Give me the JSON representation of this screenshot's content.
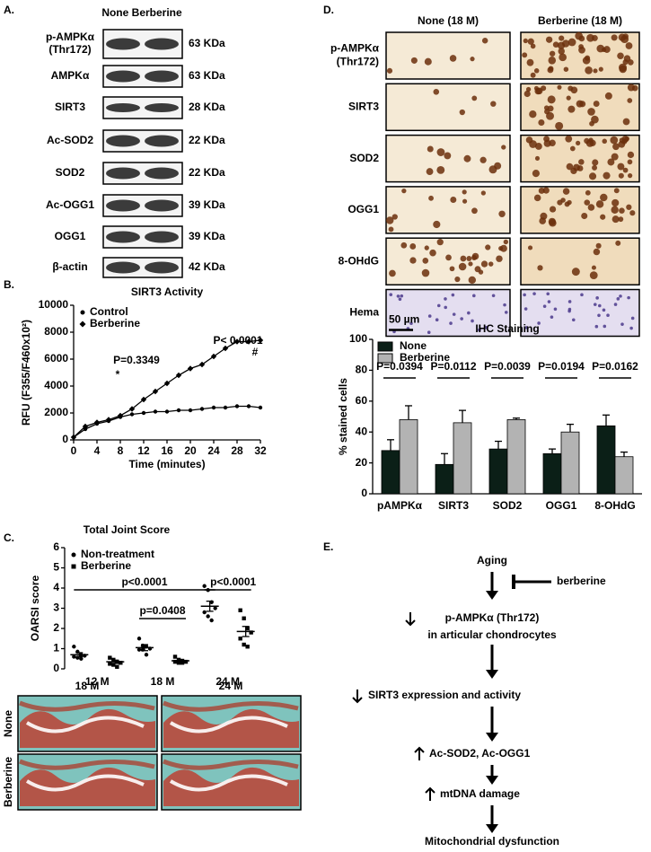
{
  "panels": [
    "A.",
    "B.",
    "C.",
    "D.",
    "E."
  ],
  "blot": {
    "header": "None Berberine",
    "rows": [
      {
        "label": [
          "p-AMPKα",
          "(Thr172)"
        ],
        "size": "63 KDa"
      },
      {
        "label": [
          "AMPKα"
        ],
        "size": "63 KDa"
      },
      {
        "label": [
          "SIRT3"
        ],
        "size": "28 KDa"
      },
      {
        "label": [
          "Ac-SOD2"
        ],
        "size": "22 KDa"
      },
      {
        "label": [
          "SOD2"
        ],
        "size": "22 KDa"
      },
      {
        "label": [
          "Ac-OGG1"
        ],
        "size": "39 KDa"
      },
      {
        "label": [
          "OGG1"
        ],
        "size": "39 KDa"
      },
      {
        "label": [
          "β-actin"
        ],
        "size": "42 KDa"
      }
    ]
  },
  "chart_data": [
    {
      "type": "line",
      "title": "SIRT3 Activity",
      "x_label": "Time (minutes)",
      "y_label": "RFU (F355/F460x10²)",
      "x": [
        0,
        2,
        4,
        6,
        8,
        10,
        12,
        14,
        16,
        18,
        20,
        22,
        24,
        26,
        28,
        30,
        32
      ],
      "xlim": [
        0,
        32
      ],
      "xticks": [
        0,
        4,
        8,
        12,
        16,
        20,
        24,
        28,
        32
      ],
      "ylim": [
        0,
        10000
      ],
      "yticks": [
        0,
        2000,
        4000,
        6000,
        8000,
        10000
      ],
      "legend": "upper left",
      "series": [
        {
          "name": "Control",
          "color": "#000000",
          "marker": "circle",
          "values": [
            200,
            800,
            1200,
            1400,
            1700,
            1900,
            2000,
            2100,
            2100,
            2200,
            2200,
            2300,
            2400,
            2400,
            2500,
            2500,
            2400
          ]
        },
        {
          "name": "Berberine",
          "color": "#000000",
          "marker": "diamond",
          "values": [
            200,
            1000,
            1300,
            1500,
            1800,
            2300,
            3000,
            3600,
            4200,
            4800,
            5300,
            5600,
            6200,
            6800,
            7300,
            7300,
            7400
          ]
        }
      ],
      "annotations": [
        "P=0.3349",
        "*",
        "P< 0.0001",
        "#"
      ]
    },
    {
      "type": "dot",
      "title": "Total Joint Score",
      "y_label": "OARSI score",
      "categories": [
        "12 M",
        "18 M",
        "24 M"
      ],
      "ylim": [
        0,
        6
      ],
      "yticks": [
        0,
        1,
        2,
        3,
        4,
        5,
        6
      ],
      "legend": "upper left",
      "series": [
        {
          "name": "Non-treatment",
          "color": "#000000",
          "marker": "circle",
          "values": [
            0.7,
            1.05,
            3.1
          ],
          "errors": [
            0.1,
            0.15,
            0.25
          ],
          "points": [
            [
              1.1,
              0.85,
              0.7,
              0.65,
              0.6,
              0.55,
              0.5
            ],
            [
              1.5,
              1.15,
              1.1,
              1.0,
              0.95,
              0.95,
              0.7
            ],
            [
              4.1,
              3.9,
              3.3,
              3.0,
              2.8,
              2.6,
              2.4
            ]
          ]
        },
        {
          "name": "Berberine",
          "color": "#000000",
          "marker": "square",
          "values": [
            0.35,
            0.4,
            1.85
          ],
          "errors": [
            0.08,
            0.05,
            0.25
          ],
          "points": [
            [
              0.55,
              0.45,
              0.35,
              0.3,
              0.25,
              0.2,
              0.1
            ],
            [
              0.6,
              0.45,
              0.4,
              0.35,
              0.35,
              0.3,
              0.3
            ],
            [
              2.9,
              2.5,
              2.0,
              1.8,
              1.5,
              1.2,
              1.1
            ]
          ]
        }
      ],
      "annotations": [
        "p<0.0001",
        "p<0.0001",
        "p=0.0408"
      ]
    },
    {
      "type": "bar",
      "title": "IHC Staining",
      "y_label": "% stained cells",
      "categories": [
        "pAMPKα",
        "SIRT3",
        "SOD2",
        "OGG1",
        "8-OHdG"
      ],
      "ylim": [
        0,
        100
      ],
      "yticks": [
        0,
        20,
        40,
        60,
        80,
        100
      ],
      "legend": "upper left",
      "series": [
        {
          "name": "None",
          "color": "#0b1f17",
          "values": [
            28,
            19,
            29,
            26,
            44
          ],
          "errors": [
            7,
            7,
            5,
            3,
            7
          ]
        },
        {
          "name": "Berberine",
          "color": "#b3b3b3",
          "values": [
            48,
            46,
            48,
            40,
            24
          ],
          "errors": [
            9,
            8,
            1,
            5,
            3
          ]
        }
      ],
      "annotations": [
        "P=0.0394",
        "P=0.0112",
        "P=0.0039",
        "P=0.0194",
        "P=0.0162"
      ]
    }
  ],
  "histology": {
    "columns": [
      "18 M",
      "24 M"
    ],
    "rows": [
      "None",
      "Berberine"
    ]
  },
  "ihc": {
    "columns": [
      "None (18 M)",
      "Berberine (18 M)"
    ],
    "rows": [
      [
        "p-AMPKα",
        "(Thr172)"
      ],
      [
        "SIRT3"
      ],
      [
        "SOD2"
      ],
      [
        "OGG1"
      ],
      [
        "8-OHdG"
      ],
      [
        "Hema"
      ]
    ],
    "scale_bar": "50 µm"
  },
  "pathway": {
    "start": "Aging",
    "inhibitor": "berberine",
    "steps": [
      [
        "p-AMPKα (Thr172)",
        "in articular chondrocytes"
      ],
      [
        "SIRT3 expression and activity"
      ],
      [
        "Ac-SOD2, Ac-OGG1"
      ],
      [
        "mtDNA damage"
      ],
      [
        "Mitochondrial dysfunction"
      ]
    ]
  }
}
